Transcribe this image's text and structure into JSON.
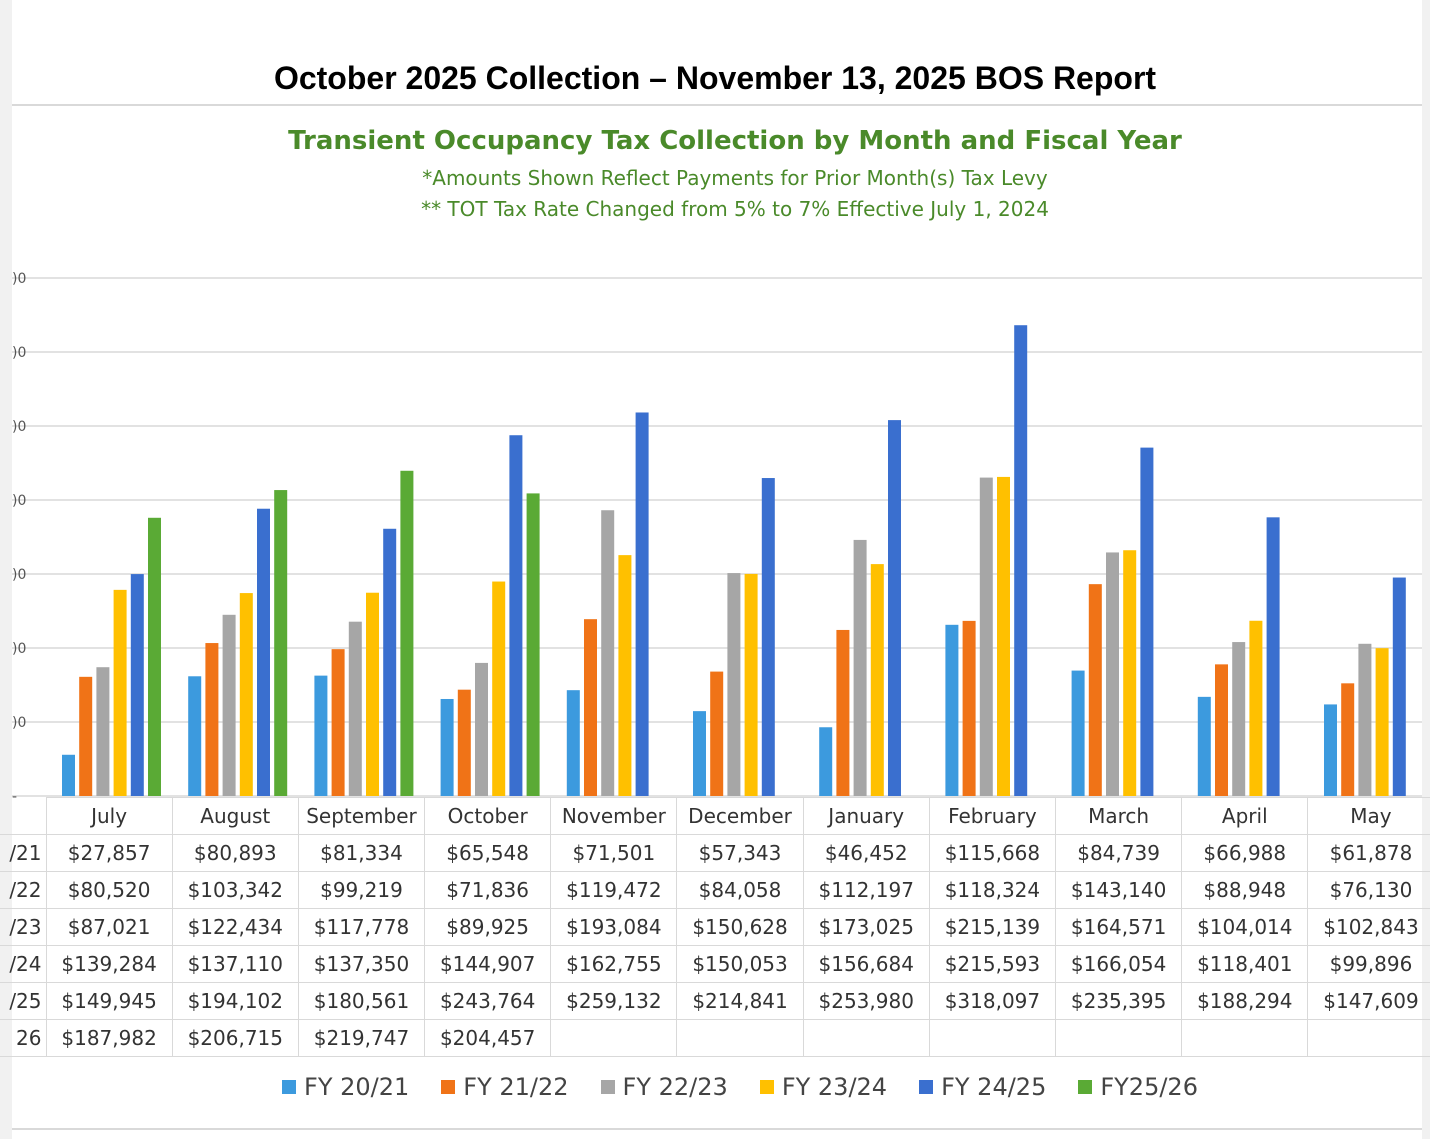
{
  "report_title": "October  2025 Collection – November 13, 2025 BOS Report",
  "chart_data": {
    "type": "bar",
    "title": "Transient Occupancy Tax Collection by Month and Fiscal Year",
    "subtitles": [
      "*Amounts Shown Reflect Payments for Prior Month(s) Tax Levy",
      "** TOT Tax Rate Changed from 5% to 7% Effective July 1, 2024"
    ],
    "categories": [
      "July",
      "August",
      "September",
      "October",
      "November",
      "December",
      "January",
      "February",
      "March",
      "April",
      "May"
    ],
    "ylim": [
      0,
      350000
    ],
    "y_tick_labels": [
      ")0",
      ")0",
      ")0",
      ")0",
      ")0",
      ")0",
      ")0",
      "-"
    ],
    "series": [
      {
        "name": "FY 20/21",
        "label": "/21",
        "color": "#3c9ade",
        "values": [
          27857,
          80893,
          81334,
          65548,
          71501,
          57343,
          46452,
          115668,
          84739,
          66988,
          61878
        ],
        "display": [
          "$27,857",
          "$80,893",
          "$81,334",
          "$65,548",
          "$71,501",
          "$57,343",
          "$46,452",
          "$115,668",
          "$84,739",
          "$66,988",
          "$61,878"
        ]
      },
      {
        "name": "FY 21/22",
        "label": "/22",
        "color": "#f07317",
        "values": [
          80520,
          103342,
          99219,
          71836,
          119472,
          84058,
          112197,
          118324,
          143140,
          88948,
          76130
        ],
        "display": [
          "$80,520",
          "$103,342",
          "$99,219",
          "$71,836",
          "$119,472",
          "$84,058",
          "$112,197",
          "$118,324",
          "$143,140",
          "$88,948",
          "$76,130"
        ]
      },
      {
        "name": "FY 22/23",
        "label": "/23",
        "color": "#a6a6a6",
        "values": [
          87021,
          122434,
          117778,
          89925,
          193084,
          150628,
          173025,
          215139,
          164571,
          104014,
          102843
        ],
        "display": [
          "$87,021",
          "$122,434",
          "$117,778",
          "$89,925",
          "$193,084",
          "$150,628",
          "$173,025",
          "$215,139",
          "$164,571",
          "$104,014",
          "$102,843"
        ]
      },
      {
        "name": "FY 23/24",
        "label": "/24",
        "color": "#ffc000",
        "values": [
          139284,
          137110,
          137350,
          144907,
          162755,
          150053,
          156684,
          215593,
          166054,
          118401,
          99896
        ],
        "display": [
          "$139,284",
          "$137,110",
          "$137,350",
          "$144,907",
          "$162,755",
          "$150,053",
          "$156,684",
          "$215,593",
          "$166,054",
          "$118,401",
          "$99,896"
        ]
      },
      {
        "name": "FY 24/25",
        "label": "/25",
        "color": "#3a6fcf",
        "values": [
          149945,
          194102,
          180561,
          243764,
          259132,
          214841,
          253980,
          318097,
          235395,
          188294,
          147609
        ],
        "display": [
          "$149,945",
          "$194,102",
          "$180,561",
          "$243,764",
          "$259,132",
          "$214,841",
          "$253,980",
          "$318,097",
          "$235,395",
          "$188,294",
          "$147,609"
        ]
      },
      {
        "name": "FY25/26",
        "label": "26",
        "color": "#5aaa35",
        "values": [
          187982,
          206715,
          219747,
          204457,
          null,
          null,
          null,
          null,
          null,
          null,
          null
        ],
        "display": [
          "$187,982",
          "$206,715",
          "$219,747",
          "$204,457",
          "",
          "",
          "",
          "",
          "",
          "",
          ""
        ]
      }
    ]
  }
}
